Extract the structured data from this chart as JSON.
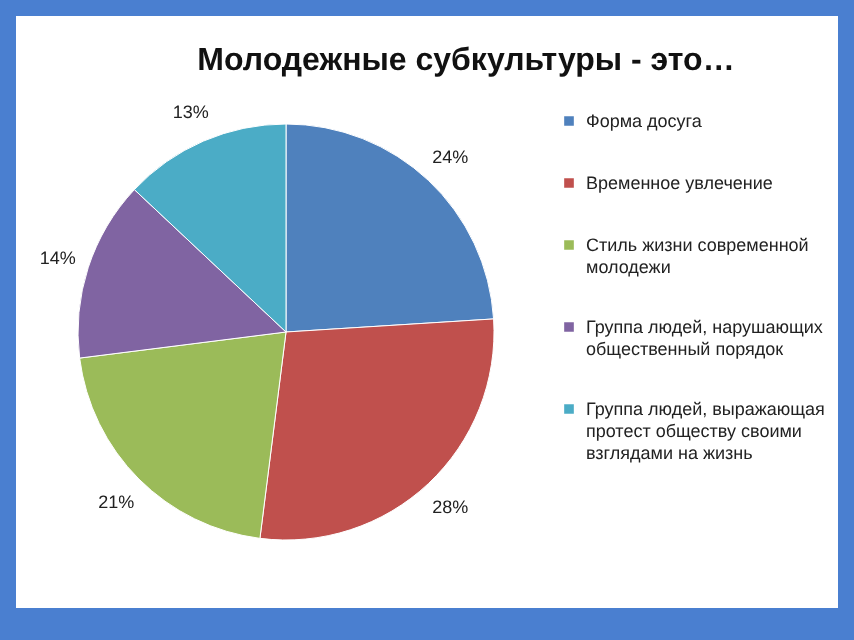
{
  "chart_data": {
    "type": "pie",
    "title": "Молодежные субкультуры - это…",
    "categories": [
      "Форма досуга",
      "Временное увлечение",
      "Стиль жизни современной молодежи",
      "Группа людей, нарушающих общественный порядок",
      "Группа людей, выражающая протест обществу своими взглядами на жизнь"
    ],
    "values": [
      24,
      28,
      21,
      14,
      13
    ],
    "colors": [
      "#4f81bd",
      "#c0504d",
      "#9bbb59",
      "#8064a2",
      "#4bacc6"
    ],
    "value_labels": [
      "24%",
      "28%",
      "21%",
      "14%",
      "13%"
    ],
    "legend": "right"
  }
}
